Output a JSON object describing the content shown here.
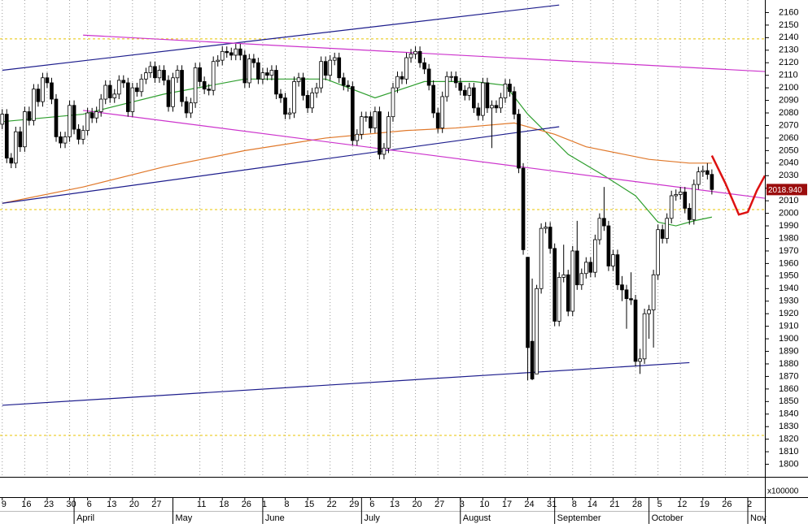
{
  "chart_data": {
    "type": "candlestick",
    "xlim": [
      -0.5,
      169.8
    ],
    "ylim": [
      1790,
      2170
    ],
    "yticks": [
      1800,
      1810,
      1820,
      1830,
      1840,
      1850,
      1860,
      1870,
      1880,
      1890,
      1900,
      1910,
      1920,
      1930,
      1940,
      1950,
      1960,
      1970,
      1980,
      1990,
      2000,
      2010,
      2020,
      2030,
      2040,
      2050,
      2060,
      2070,
      2080,
      2090,
      2100,
      2110,
      2120,
      2130,
      2140,
      2150,
      2160
    ],
    "xticks": [
      {
        "value": 0,
        "label": "9"
      },
      {
        "value": 5,
        "label": "16"
      },
      {
        "value": 10,
        "label": "23"
      },
      {
        "value": 15,
        "label": "30"
      },
      {
        "value": 19,
        "label": "6"
      },
      {
        "value": 24,
        "label": "13"
      },
      {
        "value": 29,
        "label": "20"
      },
      {
        "value": 34,
        "label": "27"
      },
      {
        "value": 44,
        "label": "11"
      },
      {
        "value": 49,
        "label": "18"
      },
      {
        "value": 54,
        "label": "26"
      },
      {
        "value": 58,
        "label": "1"
      },
      {
        "value": 63,
        "label": "8"
      },
      {
        "value": 68,
        "label": "15"
      },
      {
        "value": 73,
        "label": "22"
      },
      {
        "value": 78,
        "label": "29"
      },
      {
        "value": 82,
        "label": "6"
      },
      {
        "value": 87,
        "label": "13"
      },
      {
        "value": 92,
        "label": "20"
      },
      {
        "value": 97,
        "label": "27"
      },
      {
        "value": 102,
        "label": "3"
      },
      {
        "value": 107,
        "label": "10"
      },
      {
        "value": 112,
        "label": "17"
      },
      {
        "value": 117,
        "label": "24"
      },
      {
        "value": 122,
        "label": "31"
      },
      {
        "value": 127,
        "label": "8"
      },
      {
        "value": 131,
        "label": "14"
      },
      {
        "value": 136,
        "label": "21"
      },
      {
        "value": 141,
        "label": "28"
      },
      {
        "value": 146,
        "label": "5"
      },
      {
        "value": 151,
        "label": "12"
      },
      {
        "value": 156,
        "label": "19"
      },
      {
        "value": 161,
        "label": "26"
      },
      {
        "value": 166,
        "label": "2"
      }
    ],
    "month_ticks": [
      {
        "value": 16,
        "label": "April"
      },
      {
        "value": 38,
        "label": "May"
      },
      {
        "value": 58,
        "label": "June"
      },
      {
        "value": 80,
        "label": "July"
      },
      {
        "value": 102,
        "label": "August"
      },
      {
        "value": 123,
        "label": "September"
      },
      {
        "value": 144,
        "label": "October"
      },
      {
        "value": 166,
        "label": "Nov"
      }
    ],
    "open": [
      2071,
      2079,
      2044,
      2040,
      2065,
      2053,
      2081,
      2074,
      2099,
      2089,
      2108,
      2104,
      2091,
      2061,
      2056,
      2061,
      2086,
      2067,
      2059,
      2066,
      2080,
      2076,
      2081,
      2091,
      2102,
      2092,
      2095,
      2106,
      2104,
      2081,
      2100,
      2097,
      2107,
      2112,
      2117,
      2108,
      2114,
      2106,
      2085,
      2108,
      2114,
      2089,
      2080,
      2088,
      2116,
      2105,
      2099,
      2098,
      2121,
      2122,
      2129,
      2128,
      2126,
      2131,
      2126,
      2104,
      2123,
      2120,
      2107,
      2112,
      2110,
      2114,
      2095,
      2092,
      2079,
      2080,
      2105,
      2108,
      2094,
      2084,
      2096,
      2100,
      2121,
      2110,
      2122,
      2124,
      2108,
      2102,
      2101,
      2058,
      2063,
      2077,
      2077,
      2068,
      2081,
      2047,
      2052,
      2077,
      2100,
      2109,
      2107,
      2124,
      2127,
      2129,
      2120,
      2115,
      2102,
      2080,
      2068,
      2093,
      2109,
      2109,
      2104,
      2098,
      2094,
      2100,
      2084,
      2078,
      2104,
      2084,
      2086,
      2084,
      2092,
      2103,
      2097,
      2079,
      2036,
      1965,
      1898,
      1872,
      1940,
      1988,
      1989,
      1972,
      1914,
      1949,
      1951,
      1922,
      1970,
      1943,
      1952,
      1961,
      1953,
      1979,
      1996,
      1990,
      1958,
      1967,
      1943,
      1939,
      1932,
      1931,
      1882,
      1884,
      1920,
      1923,
      1951,
      1987,
      1980,
      1996,
      2014,
      2015,
      2017,
      2004,
      1995,
      2023,
      2033,
      2034,
      2031
    ],
    "high": [
      2083,
      2083,
      2048,
      2069,
      2069,
      2085,
      2085,
      2103,
      2103,
      2112,
      2112,
      2108,
      2095,
      2065,
      2065,
      2090,
      2090,
      2071,
      2070,
      2084,
      2084,
      2085,
      2095,
      2106,
      2106,
      2099,
      2110,
      2110,
      2108,
      2104,
      2104,
      2111,
      2116,
      2121,
      2121,
      2118,
      2118,
      2110,
      2112,
      2118,
      2118,
      2093,
      2092,
      2120,
      2120,
      2109,
      2103,
      2125,
      2126,
      2133,
      2133,
      2132,
      2135,
      2135,
      2130,
      2127,
      2127,
      2124,
      2116,
      2116,
      2118,
      2118,
      2099,
      2096,
      2084,
      2109,
      2112,
      2112,
      2098,
      2100,
      2104,
      2125,
      2125,
      2126,
      2128,
      2128,
      2112,
      2106,
      2105,
      2067,
      2081,
      2081,
      2081,
      2085,
      2085,
      2056,
      2081,
      2104,
      2113,
      2113,
      2128,
      2131,
      2133,
      2133,
      2124,
      2119,
      2106,
      2084,
      2097,
      2113,
      2113,
      2113,
      2108,
      2102,
      2104,
      2104,
      2088,
      2108,
      2108,
      2090,
      2090,
      2096,
      2107,
      2107,
      2101,
      2083,
      2040,
      1965,
      1948,
      1943,
      1992,
      1993,
      1993,
      1976,
      1953,
      1975,
      1955,
      1974,
      1994,
      1956,
      1965,
      1965,
      1983,
      2000,
      2021,
      1994,
      1971,
      1971,
      1950,
      1943,
      1953,
      1935,
      1892,
      1924,
      1927,
      1955,
      1991,
      1991,
      2000,
      2018,
      2019,
      2021,
      2021,
      2008,
      2027,
      2037,
      2038,
      2040,
      2035
    ],
    "low": [
      2067,
      2040,
      2036,
      2036,
      2049,
      2049,
      2070,
      2070,
      2085,
      2085,
      2100,
      2087,
      2057,
      2052,
      2052,
      2057,
      2063,
      2055,
      2055,
      2062,
      2072,
      2072,
      2077,
      2087,
      2088,
      2088,
      2091,
      2100,
      2077,
      2077,
      2093,
      2093,
      2103,
      2108,
      2104,
      2104,
      2102,
      2081,
      2081,
      2104,
      2085,
      2076,
      2076,
      2084,
      2101,
      2095,
      2094,
      2094,
      2117,
      2118,
      2124,
      2122,
      2122,
      2122,
      2100,
      2100,
      2116,
      2103,
      2103,
      2106,
      2106,
      2091,
      2088,
      2075,
      2075,
      2076,
      2101,
      2090,
      2080,
      2080,
      2092,
      2096,
      2106,
      2106,
      2118,
      2104,
      2098,
      2097,
      2054,
      2054,
      2059,
      2073,
      2064,
      2064,
      2043,
      2043,
      2048,
      2073,
      2096,
      2103,
      2103,
      2120,
      2123,
      2116,
      2111,
      2098,
      2076,
      2064,
      2064,
      2089,
      2105,
      2100,
      2094,
      2090,
      2090,
      2080,
      2074,
      2074,
      2080,
      2052,
      2080,
      2080,
      2088,
      2093,
      2075,
      2032,
      1967,
      1867,
      1867,
      1872,
      1936,
      1984,
      1968,
      1910,
      1910,
      1945,
      1918,
      1918,
      1939,
      1939,
      1948,
      1949,
      1949,
      1975,
      1986,
      1954,
      1954,
      1939,
      1930,
      1908,
      1927,
      1878,
      1872,
      1880,
      1900,
      1893,
      1947,
      1976,
      1976,
      1992,
      2010,
      2011,
      2000,
      1991,
      1991,
      2019,
      2029,
      2027,
      2015
    ],
    "close": [
      2079,
      2044,
      2040,
      2065,
      2053,
      2081,
      2074,
      2099,
      2089,
      2108,
      2104,
      2091,
      2061,
      2056,
      2061,
      2086,
      2067,
      2059,
      2066,
      2080,
      2076,
      2081,
      2091,
      2102,
      2092,
      2095,
      2106,
      2104,
      2081,
      2100,
      2097,
      2107,
      2112,
      2117,
      2108,
      2114,
      2106,
      2085,
      2108,
      2114,
      2089,
      2080,
      2088,
      2116,
      2105,
      2099,
      2098,
      2121,
      2122,
      2129,
      2128,
      2126,
      2131,
      2126,
      2104,
      2123,
      2120,
      2107,
      2112,
      2110,
      2114,
      2095,
      2092,
      2079,
      2080,
      2105,
      2108,
      2094,
      2084,
      2096,
      2100,
      2121,
      2110,
      2122,
      2124,
      2108,
      2102,
      2101,
      2058,
      2063,
      2077,
      2077,
      2068,
      2081,
      2047,
      2052,
      2077,
      2100,
      2109,
      2107,
      2124,
      2127,
      2129,
      2120,
      2115,
      2102,
      2080,
      2068,
      2093,
      2109,
      2109,
      2104,
      2098,
      2094,
      2100,
      2084,
      2078,
      2104,
      2084,
      2086,
      2084,
      2092,
      2103,
      2097,
      2079,
      2036,
      1971,
      1893,
      1868,
      1940,
      1988,
      1989,
      1972,
      1914,
      1949,
      1951,
      1922,
      1970,
      1943,
      1952,
      1961,
      1953,
      1979,
      1996,
      1990,
      1958,
      1967,
      1943,
      1939,
      1932,
      1931,
      1882,
      1884,
      1920,
      1923,
      1951,
      1987,
      1980,
      1996,
      2014,
      2015,
      2017,
      2004,
      1995,
      2023,
      2033,
      2034,
      2031,
      2019
    ],
    "up_color": "#ffffff",
    "down_color": "#000000",
    "candle_edge_color": "#000000",
    "overlays": [
      {
        "color": "#2e9e2e",
        "x": [
          0,
          18,
          36,
          54,
          72,
          83,
          94,
          105,
          112,
          117,
          126,
          134,
          141,
          146,
          150,
          154,
          158
        ],
        "y": [
          2073,
          2079,
          2095,
          2107,
          2107,
          2092,
          2105,
          2105,
          2102,
          2079,
          2047,
          2030,
          2014,
          1993,
          1990,
          1994,
          1997
        ]
      },
      {
        "color": "#e0782a",
        "x": [
          0,
          18,
          36,
          54,
          72,
          90,
          101,
          114,
          123,
          130,
          144,
          153,
          158
        ],
        "y": [
          2008,
          2021,
          2037,
          2050,
          2060,
          2066,
          2068,
          2072,
          2063,
          2053,
          2043,
          2040,
          2040
        ]
      },
      {
        "color": "#1c1c8c",
        "x": [
          0,
          124
        ],
        "y": [
          2114,
          2166
        ]
      },
      {
        "color": "#1c1c8c",
        "x": [
          0,
          124
        ],
        "y": [
          2008,
          2069
        ]
      },
      {
        "color": "#1c1c8c",
        "x": [
          0,
          153
        ],
        "y": [
          1847,
          1881
        ]
      },
      {
        "color": "#cc33cc",
        "x": [
          18,
          169.8
        ],
        "y": [
          2142,
          2113
        ]
      },
      {
        "color": "#cc33cc",
        "x": [
          18,
          169.8
        ],
        "y": [
          2082,
          2012
        ]
      },
      {
        "color": "#dd1111",
        "x": [
          158,
          161,
          164,
          166,
          168,
          169.8
        ],
        "y": [
          2046,
          2024,
          1999,
          2001,
          2018,
          2030
        ]
      }
    ],
    "hlines": {
      "color": "#e8c400",
      "values": [
        2139,
        2003,
        1823
      ]
    },
    "last_price": {
      "value": 2018.94,
      "label": "2018.940"
    },
    "volume_unit_label": "x100000"
  }
}
